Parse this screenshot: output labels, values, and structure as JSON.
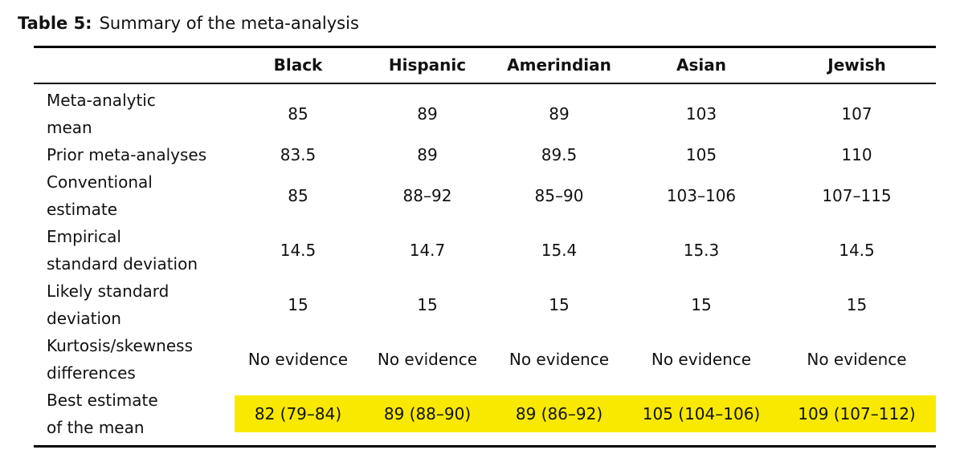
{
  "caption": {
    "label": "Table 5:",
    "text": "Summary of the meta-analysis"
  },
  "table": {
    "highlight_color": "#f9e900",
    "columns": [
      "Black",
      "Hispanic",
      "Amerindian",
      "Asian",
      "Jewish"
    ],
    "rows": [
      {
        "label_lines": [
          "Meta-analytic",
          "mean"
        ],
        "values": [
          "85",
          "89",
          "89",
          "103",
          "107"
        ],
        "highlight": false
      },
      {
        "label_lines": [
          "Prior meta-analyses"
        ],
        "values": [
          "83.5",
          "89",
          "89.5",
          "105",
          "110"
        ],
        "highlight": false
      },
      {
        "label_lines": [
          "Conventional",
          "estimate"
        ],
        "values": [
          "85",
          "88–92",
          "85–90",
          "103–106",
          "107–115"
        ],
        "highlight": false
      },
      {
        "label_lines": [
          "Empirical",
          "standard deviation"
        ],
        "values": [
          "14.5",
          "14.7",
          "15.4",
          "15.3",
          "14.5"
        ],
        "highlight": false
      },
      {
        "label_lines": [
          "Likely standard",
          "deviation"
        ],
        "values": [
          "15",
          "15",
          "15",
          "15",
          "15"
        ],
        "highlight": false
      },
      {
        "label_lines": [
          "Kurtosis/skewness",
          "differences"
        ],
        "values": [
          "No evidence",
          "No evidence",
          "No evidence",
          "No evidence",
          "No evidence"
        ],
        "highlight": false
      },
      {
        "label_lines": [
          "Best estimate",
          "of the mean"
        ],
        "values": [
          "82 (79–84)",
          "89 (88–90)",
          "89 (86–92)",
          "105 (104–106)",
          "109 (107–112)"
        ],
        "highlight": true
      }
    ]
  }
}
